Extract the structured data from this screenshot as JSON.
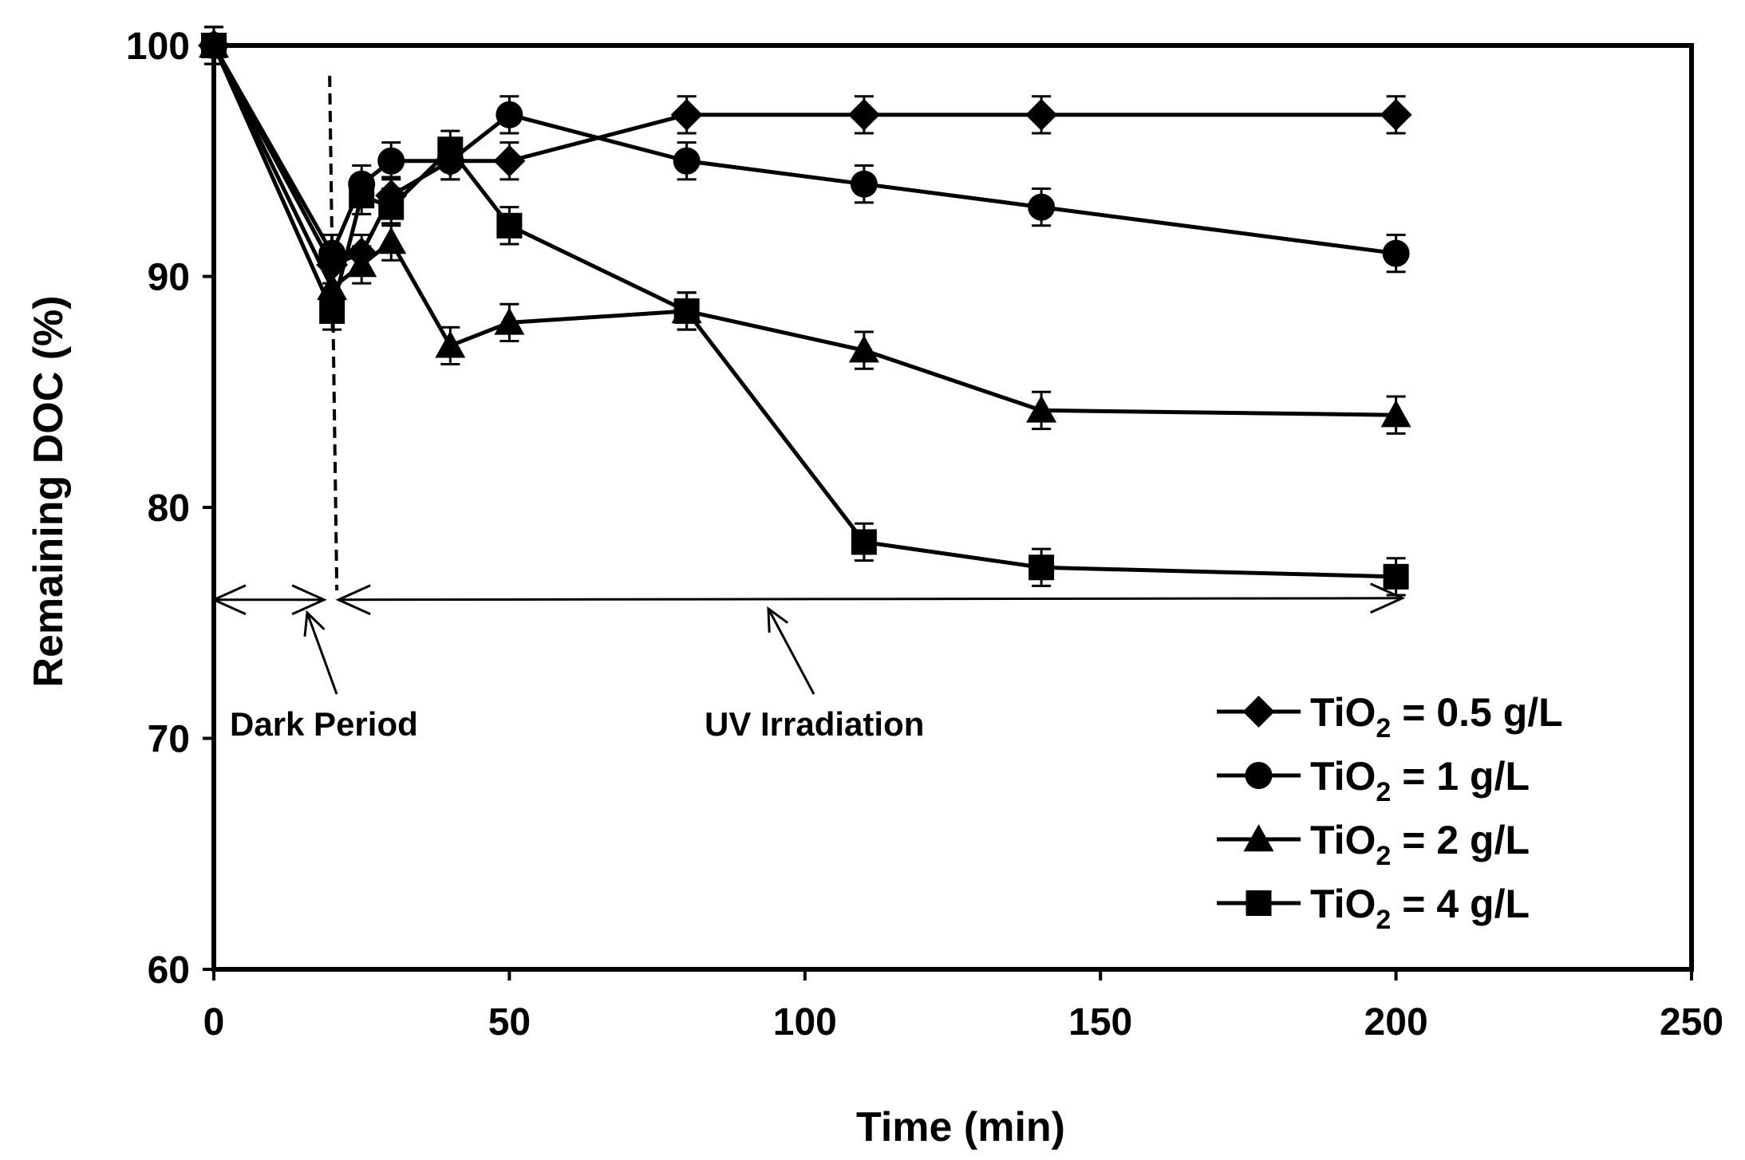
{
  "chart_data": {
    "type": "line",
    "title": "",
    "xlabel": "Time (min)",
    "ylabel": "Remaining DOC (%)",
    "xlim": [
      0,
      250
    ],
    "ylim": [
      60,
      100
    ],
    "xticks": [
      0,
      50,
      100,
      150,
      200,
      250
    ],
    "yticks": [
      60,
      70,
      80,
      90,
      100
    ],
    "grid": false,
    "legend_position": "bottom-right",
    "error_bar": 0.8,
    "series": [
      {
        "name": "TiO2 = 0.5 g/L",
        "legend_base": "TiO",
        "legend_sub": "2",
        "legend_rest": " = 0.5 g/L",
        "marker": "diamond",
        "x": [
          0,
          20,
          25,
          30,
          40,
          50,
          80,
          110,
          140,
          200
        ],
        "y": [
          100,
          90.5,
          91,
          93.5,
          95,
          95,
          97,
          97,
          97,
          97
        ]
      },
      {
        "name": "TiO2 = 1 g/L",
        "legend_base": "TiO",
        "legend_sub": "2",
        "legend_rest": " = 1 g/L",
        "marker": "circle",
        "x": [
          0,
          20,
          25,
          30,
          40,
          50,
          80,
          110,
          140,
          200
        ],
        "y": [
          100,
          91,
          94,
          95,
          95,
          97,
          95,
          94,
          93,
          91
        ]
      },
      {
        "name": "TiO2 = 2 g/L",
        "legend_base": "TiO",
        "legend_sub": "2",
        "legend_rest": " = 2 g/L",
        "marker": "triangle",
        "x": [
          0,
          20,
          25,
          30,
          40,
          50,
          80,
          110,
          140,
          200
        ],
        "y": [
          100,
          89.5,
          90.5,
          91.5,
          87,
          88,
          88.5,
          86.8,
          84.2,
          84
        ]
      },
      {
        "name": "TiO2 = 4 g/L",
        "legend_base": "TiO",
        "legend_sub": "2",
        "legend_rest": " = 4 g/L",
        "marker": "square",
        "x": [
          0,
          20,
          25,
          30,
          40,
          50,
          80,
          110,
          140,
          200
        ],
        "y": [
          100,
          88.5,
          93.5,
          93,
          95.5,
          92.2,
          88.5,
          78.5,
          77.4,
          77
        ]
      }
    ],
    "annotations": [
      {
        "id": "dark",
        "text": "Dark Period",
        "x_start": 0,
        "x_end": 20
      },
      {
        "id": "uv",
        "text": "UV Irradiation",
        "x_start": 20,
        "x_end": 200
      }
    ],
    "divider_x": 20,
    "arrow_y": 76
  }
}
